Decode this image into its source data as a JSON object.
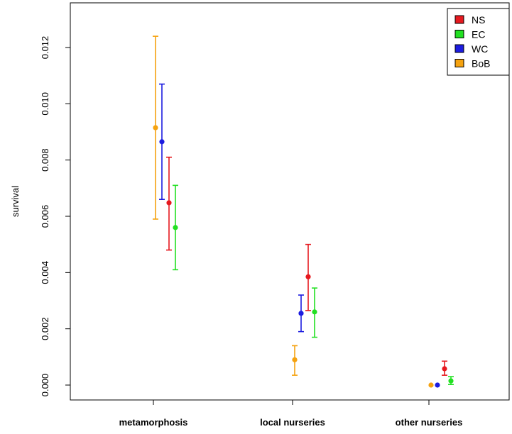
{
  "chart_data": {
    "type": "scatter",
    "ylabel": "survival",
    "ylim": [
      0,
      0.0126
    ],
    "y_ticks": [
      "0.000",
      "0.002",
      "0.004",
      "0.006",
      "0.008",
      "0.010",
      "0.012"
    ],
    "categories": [
      "metamorphosis",
      "local nurseries",
      "other nurseries"
    ],
    "legend_position": "top-right",
    "series": [
      {
        "name": "NS",
        "color": "#e6191f",
        "values": [
          0.00648,
          0.00385,
          0.00058
        ],
        "lower": [
          0.0048,
          0.00265,
          0.00035
        ],
        "upper": [
          0.0081,
          0.005,
          0.00085
        ]
      },
      {
        "name": "EC",
        "color": "#22e022",
        "values": [
          0.0056,
          0.0026,
          0.00015
        ],
        "lower": [
          0.0041,
          0.0017,
          2e-05
        ],
        "upper": [
          0.0071,
          0.00345,
          0.0003
        ]
      },
      {
        "name": "WC",
        "color": "#1c1ce0",
        "values": [
          0.00865,
          0.00255,
          0.0
        ],
        "lower": [
          0.0066,
          0.0019,
          0.0
        ],
        "upper": [
          0.0107,
          0.0032,
          0.0
        ]
      },
      {
        "name": "BoB",
        "color": "#f5a20f",
        "values": [
          0.00915,
          0.0009,
          0.0
        ],
        "lower": [
          0.0059,
          0.00035,
          0.0
        ],
        "upper": [
          0.0124,
          0.0014,
          0.0
        ]
      }
    ]
  }
}
